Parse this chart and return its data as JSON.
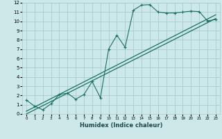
{
  "xlabel": "Humidex (Indice chaleur)",
  "bg_color": "#cce8e8",
  "grid_color": "#aacccc",
  "line_color": "#1a7060",
  "xlim": [
    -0.5,
    23.5
  ],
  "ylim": [
    0,
    12
  ],
  "xticks": [
    0,
    1,
    2,
    3,
    4,
    5,
    6,
    7,
    8,
    9,
    10,
    11,
    12,
    13,
    14,
    15,
    16,
    17,
    18,
    19,
    20,
    21,
    22,
    23
  ],
  "yticks": [
    0,
    1,
    2,
    3,
    4,
    5,
    6,
    7,
    8,
    9,
    10,
    11,
    12
  ],
  "scatter_x": [
    0,
    1,
    2,
    3,
    4,
    5,
    6,
    7,
    8,
    9,
    10,
    11,
    12,
    13,
    14,
    15,
    16,
    17,
    18,
    19,
    20,
    21,
    22,
    23
  ],
  "scatter_y": [
    1.5,
    0.85,
    0.45,
    1.1,
    2.1,
    2.25,
    1.6,
    2.1,
    3.5,
    1.75,
    7.0,
    8.5,
    7.2,
    11.2,
    11.75,
    11.8,
    11.0,
    10.9,
    10.9,
    11.0,
    11.1,
    11.05,
    10.05,
    10.2
  ],
  "line1_x": [
    0,
    23
  ],
  "line1_y": [
    0.3,
    10.7
  ],
  "line2_x": [
    0,
    23
  ],
  "line2_y": [
    0.0,
    10.3
  ]
}
